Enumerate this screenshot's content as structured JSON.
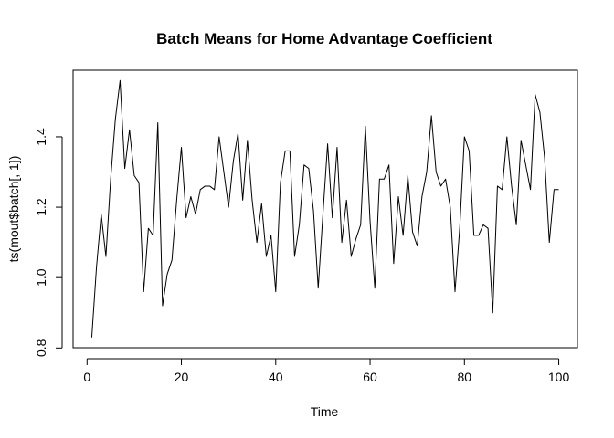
{
  "chart_data": {
    "type": "line",
    "title": "Batch Means for Home Advantage Coefficient",
    "xlabel": "Time",
    "ylabel": "ts(mout$batch[, 1])",
    "xlim": [
      1,
      100
    ],
    "ylim": [
      0.8,
      1.6
    ],
    "x_ticks": [
      0,
      20,
      40,
      60,
      80,
      100
    ],
    "y_ticks": [
      0.8,
      1.0,
      1.2,
      1.4
    ],
    "x_tick_labels": [
      "0",
      "20",
      "40",
      "60",
      "80",
      "100"
    ],
    "y_tick_labels": [
      "0.8",
      "1.0",
      "1.2",
      "1.4"
    ],
    "grid": false,
    "legend": "none",
    "line_color": "#000000",
    "series": [
      {
        "x": [
          1,
          2,
          3,
          4,
          5,
          6,
          7,
          8,
          9,
          10,
          11,
          12,
          13,
          14,
          15,
          16,
          17,
          18,
          19,
          20,
          21,
          22,
          23,
          24,
          25,
          26,
          27,
          28,
          29,
          30,
          31,
          32,
          33,
          34,
          35,
          36,
          37,
          38,
          39,
          40,
          41,
          42,
          43,
          44,
          45,
          46,
          47,
          48,
          49,
          50,
          51,
          52,
          53,
          54,
          55,
          56,
          57,
          58,
          59,
          60,
          61,
          62,
          63,
          64,
          65,
          66,
          67,
          68,
          69,
          70,
          71,
          72,
          73,
          74,
          75,
          76,
          77,
          78,
          79,
          80,
          81,
          82,
          83,
          84,
          85,
          86,
          87,
          88,
          89,
          90,
          91,
          92,
          93,
          94,
          95,
          96,
          97,
          98,
          99,
          100
        ],
        "values": [
          0.83,
          1.03,
          1.18,
          1.06,
          1.28,
          1.45,
          1.56,
          1.31,
          1.42,
          1.29,
          1.27,
          0.96,
          1.14,
          1.12,
          1.44,
          0.92,
          1.01,
          1.05,
          1.22,
          1.37,
          1.17,
          1.23,
          1.18,
          1.25,
          1.26,
          1.26,
          1.25,
          1.4,
          1.3,
          1.2,
          1.33,
          1.41,
          1.22,
          1.39,
          1.22,
          1.1,
          1.21,
          1.06,
          1.12,
          0.96,
          1.27,
          1.36,
          1.36,
          1.06,
          1.15,
          1.32,
          1.31,
          1.19,
          0.97,
          1.18,
          1.38,
          1.17,
          1.37,
          1.1,
          1.22,
          1.06,
          1.11,
          1.15,
          1.43,
          1.16,
          0.97,
          1.28,
          1.28,
          1.32,
          1.04,
          1.23,
          1.12,
          1.29,
          1.13,
          1.09,
          1.23,
          1.3,
          1.46,
          1.3,
          1.26,
          1.28,
          1.2,
          0.96,
          1.14,
          1.4,
          1.36,
          1.12,
          1.12,
          1.15,
          1.14,
          0.9,
          1.26,
          1.25,
          1.4,
          1.26,
          1.15,
          1.39,
          1.32,
          1.25,
          1.52,
          1.47,
          1.34,
          1.1,
          1.25,
          1.25
        ]
      }
    ]
  }
}
